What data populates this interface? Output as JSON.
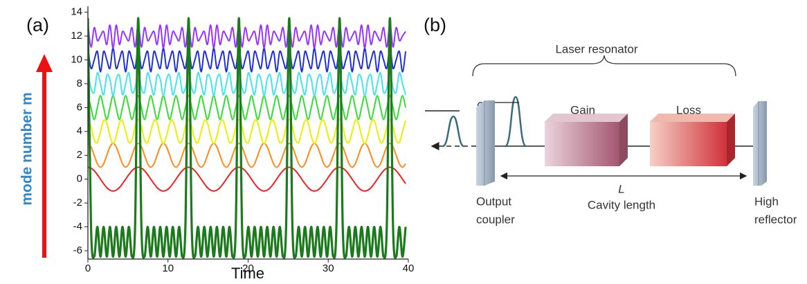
{
  "panel_labels": [
    "(a)",
    "(b)"
  ],
  "chart_data": {
    "type": "line",
    "xlabel": "Time",
    "ylabel": "mode number m",
    "xlim": [
      0,
      40
    ],
    "xticks": [
      0,
      10,
      20,
      30,
      40
    ],
    "ylim": [
      -6.7,
      14.5
    ],
    "yticks": [
      -6,
      -4,
      -2,
      0,
      2,
      4,
      6,
      8,
      10,
      12,
      14
    ],
    "x": [
      0,
      0.39,
      0.79,
      1.18,
      1.57,
      1.96,
      2.36,
      2.75,
      3.14,
      3.53,
      3.93,
      4.32,
      4.71,
      5.11,
      5.5,
      5.89,
      6.28,
      6.68,
      7.07,
      7.46,
      7.85,
      8.25,
      8.64,
      9.03,
      9.42,
      9.82,
      10.21,
      10.6,
      11,
      11.39,
      11.78,
      12.17,
      12.57,
      12.96,
      13.35,
      13.74,
      14.14,
      14.53,
      14.92,
      15.32,
      15.71,
      16.1,
      16.49,
      16.89,
      17.28,
      17.67,
      18.06,
      18.46,
      18.85,
      19.24,
      19.63,
      20.03,
      20.42,
      20.81,
      21.21,
      21.6,
      21.99,
      22.38,
      22.78,
      23.17,
      23.56,
      23.95,
      24.35,
      24.74,
      25.13,
      25.53,
      25.92,
      26.31,
      26.7,
      27.1,
      27.49,
      27.88,
      28.27,
      28.67,
      29.06,
      29.45,
      29.85,
      30.24,
      30.63,
      31.02,
      31.42,
      31.81,
      32.2,
      32.59,
      32.99,
      33.38,
      33.77,
      34.16,
      34.56,
      34.95,
      35.34,
      35.74,
      36.13,
      36.52,
      36.91,
      37.31,
      37.7,
      38.09,
      38.48,
      38.88,
      39.27,
      39.66
    ],
    "series": [
      {
        "color": "#ee2222",
        "values": [
          1,
          0.92,
          0.71,
          0.38,
          0,
          -0.38,
          -0.71,
          -0.92,
          -1,
          -0.92,
          -0.71,
          -0.38,
          0,
          0.38,
          0.71,
          0.92,
          1,
          0.92,
          0.71,
          0.38,
          0,
          -0.38,
          -0.71,
          -0.92,
          -1,
          -0.92,
          -0.71,
          -0.38,
          0,
          0.38,
          0.71,
          0.92,
          1,
          0.92,
          0.71,
          0.38,
          0,
          -0.38,
          -0.71,
          -0.92,
          -1,
          -0.92,
          -0.71,
          -0.38,
          0,
          0.38,
          0.71,
          0.92,
          1,
          0.92,
          0.71,
          0.38,
          0,
          -0.38,
          -0.71,
          -0.92,
          -1,
          -0.92,
          -0.71,
          -0.38,
          0,
          0.38,
          0.71,
          0.92,
          1,
          0.92,
          0.71,
          0.38,
          0,
          -0.38,
          -0.71,
          -0.92,
          -1,
          -0.92,
          -0.71,
          -0.38,
          0,
          0.38,
          0.71,
          0.92,
          1,
          0.92,
          0.71,
          0.38,
          0,
          -0.38,
          -0.71,
          -0.92,
          -1,
          -0.92,
          -0.71,
          -0.38,
          0,
          0.38,
          0.71,
          0.92,
          1,
          0.92,
          0.71,
          0.38,
          0,
          -0.38
        ]
      },
      {
        "color": "#ff8a1a",
        "values": [
          3,
          2.71,
          2,
          1.29,
          1,
          1.29,
          2,
          2.71,
          3,
          2.71,
          2,
          1.29,
          1,
          1.29,
          2,
          2.71,
          3,
          2.71,
          2,
          1.29,
          1,
          1.29,
          2,
          2.71,
          3,
          2.71,
          2,
          1.29,
          1,
          1.29,
          2,
          2.71,
          3,
          2.71,
          2,
          1.29,
          1,
          1.29,
          2,
          2.71,
          3,
          2.71,
          2,
          1.29,
          1,
          1.29,
          2,
          2.71,
          3,
          2.71,
          2,
          1.29,
          1,
          1.29,
          2,
          2.71,
          3,
          2.71,
          2,
          1.29,
          1,
          1.29,
          2,
          2.71,
          3,
          2.71,
          2,
          1.29,
          1,
          1.29,
          2,
          2.71,
          3,
          2.71,
          2,
          1.29,
          1,
          1.29,
          2,
          2.71,
          3,
          2.71,
          2,
          1.29,
          1,
          1.29,
          2,
          2.71,
          3,
          2.71,
          2,
          1.29,
          1,
          1.29,
          2,
          2.71,
          3,
          2.71,
          2,
          1.29,
          1,
          1.29
        ]
      },
      {
        "color": "#eeee00",
        "values": [
          5,
          4.38,
          3.29,
          3.08,
          4,
          4.92,
          4.71,
          3.62,
          3,
          3.62,
          4.71,
          4.92,
          4,
          3.08,
          3.29,
          4.38,
          5,
          4.38,
          3.29,
          3.08,
          4,
          4.92,
          4.71,
          3.62,
          3,
          3.62,
          4.71,
          4.92,
          4,
          3.08,
          3.29,
          4.38,
          5,
          4.38,
          3.29,
          3.08,
          4,
          4.92,
          4.71,
          3.62,
          3,
          3.62,
          4.71,
          4.92,
          4,
          3.08,
          3.29,
          4.38,
          5,
          4.38,
          3.29,
          3.08,
          4,
          4.92,
          4.71,
          3.62,
          3,
          3.62,
          4.71,
          4.92,
          4,
          3.08,
          3.29,
          4.38,
          5,
          4.38,
          3.29,
          3.08,
          4,
          4.92,
          4.71,
          3.62,
          3,
          3.62,
          4.71,
          4.92,
          4,
          3.08,
          3.29,
          4.38,
          5,
          4.38,
          3.29,
          3.08,
          4,
          4.92,
          4.71,
          3.62,
          3,
          3.62,
          4.71,
          4.92,
          4,
          3.08,
          3.29,
          4.38,
          5,
          4.38,
          3.29,
          3.08,
          4,
          4.92
        ]
      },
      {
        "color": "#33dd33",
        "values": [
          7,
          6,
          5,
          6,
          7,
          6,
          5,
          6,
          7,
          6,
          5,
          6,
          7,
          6,
          5,
          6,
          7,
          6,
          5,
          6,
          7,
          6,
          5,
          6,
          7,
          6,
          5,
          6,
          7,
          6,
          5,
          6,
          7,
          6,
          5,
          6,
          7,
          6,
          5,
          6,
          7,
          6,
          5,
          6,
          7,
          6,
          5,
          6,
          7,
          6,
          5,
          6,
          7,
          6,
          5,
          6,
          7,
          6,
          5,
          6,
          7,
          6,
          5,
          6,
          7,
          6,
          5,
          6,
          7,
          6,
          5,
          6,
          7,
          6,
          5,
          6,
          7,
          6,
          5,
          6,
          7,
          6,
          5,
          6,
          7,
          6,
          5,
          6,
          7,
          6,
          5,
          6,
          7,
          6,
          5,
          6,
          7,
          6,
          5,
          6,
          7,
          6
        ]
      },
      {
        "color": "#44e4ee",
        "values": [
          9,
          7.62,
          7.29,
          8.92,
          8,
          7.08,
          8.71,
          8.38,
          7,
          8.38,
          8.71,
          7.08,
          8,
          8.92,
          7.29,
          7.62,
          9,
          7.62,
          7.29,
          8.92,
          8,
          7.08,
          8.71,
          8.38,
          7,
          8.38,
          8.71,
          7.08,
          8,
          8.92,
          7.29,
          7.62,
          9,
          7.62,
          7.29,
          8.92,
          8,
          7.08,
          8.71,
          8.38,
          7,
          8.38,
          8.71,
          7.08,
          8,
          8.92,
          7.29,
          7.62,
          9,
          7.62,
          7.29,
          8.92,
          8,
          7.08,
          8.71,
          8.38,
          7,
          8.38,
          8.71,
          7.08,
          8,
          8.92,
          7.29,
          7.62,
          9,
          7.62,
          7.29,
          8.92,
          8,
          7.08,
          8.71,
          8.38,
          7,
          8.38,
          8.71,
          7.08,
          8,
          8.92,
          7.29,
          7.62,
          9,
          7.62,
          7.29,
          8.92,
          8,
          7.08,
          8.71,
          8.38,
          7,
          8.38,
          8.71,
          7.08,
          8,
          8.92,
          7.29,
          7.62,
          9,
          7.62,
          7.29,
          8.92,
          8,
          7.08
        ]
      },
      {
        "color": "#1f2fd6",
        "values": [
          11,
          9.29,
          10,
          10.71,
          9,
          10.71,
          10,
          9.29,
          11,
          9.29,
          10,
          10.71,
          9,
          10.71,
          10,
          9.29,
          11,
          9.29,
          10,
          10.71,
          9,
          10.71,
          10,
          9.29,
          11,
          9.29,
          10,
          10.71,
          9,
          10.71,
          10,
          9.29,
          11,
          9.29,
          10,
          10.71,
          9,
          10.71,
          10,
          9.29,
          11,
          9.29,
          10,
          10.71,
          9,
          10.71,
          10,
          9.29,
          11,
          9.29,
          10,
          10.71,
          9,
          10.71,
          10,
          9.29,
          11,
          9.29,
          10,
          10.71,
          9,
          10.71,
          10,
          9.29,
          11,
          9.29,
          10,
          10.71,
          9,
          10.71,
          10,
          9.29,
          11,
          9.29,
          10,
          10.71,
          9,
          10.71,
          10,
          9.29,
          11,
          9.29,
          10,
          10.71,
          9,
          10.71,
          10,
          9.29,
          11,
          9.29,
          10,
          10.71,
          9,
          10.71,
          10,
          9.29,
          11,
          9.29,
          10,
          10.71,
          9,
          10.71
        ]
      },
      {
        "color": "#9933ff",
        "values": [
          13,
          11.08,
          12.71,
          11.62,
          12,
          12.38,
          11.29,
          12.92,
          11,
          12.92,
          11.29,
          12.38,
          12,
          11.62,
          12.71,
          11.08,
          13,
          11.08,
          12.71,
          11.62,
          12,
          12.38,
          11.29,
          12.92,
          11,
          12.92,
          11.29,
          12.38,
          12,
          11.62,
          12.71,
          11.08,
          13,
          11.08,
          12.71,
          11.62,
          12,
          12.38,
          11.29,
          12.92,
          11,
          12.92,
          11.29,
          12.38,
          12,
          11.62,
          12.71,
          11.08,
          13,
          11.08,
          12.71,
          11.62,
          12,
          12.38,
          11.29,
          12.92,
          11,
          12.92,
          11.29,
          12.38,
          12,
          11.62,
          12.71,
          11.08,
          13,
          11.08,
          12.71,
          11.62,
          12,
          12.38,
          11.29,
          12.92,
          11,
          12.92,
          11.29,
          12.38,
          12,
          11.62,
          12.71,
          11.08,
          13,
          11.08,
          12.71,
          11.62,
          12,
          12.38,
          11.29,
          12.92,
          11,
          12.92,
          11.29,
          12.38,
          12,
          11.62,
          12.71,
          11.08,
          13,
          11.08,
          12.71,
          11.62,
          12,
          12.38
        ]
      },
      {
        "color": "#1b7a1b",
        "values": [
          13.5,
          -4,
          -6.5,
          -4,
          -6.5,
          -4,
          -6.5,
          -4,
          -6.5,
          -4,
          -6.5,
          -4,
          -6.5,
          -4,
          -6.5,
          -4,
          13.5,
          -4,
          -6.5,
          -4,
          -6.5,
          -4,
          -6.5,
          -4,
          -6.5,
          -4,
          -6.5,
          -4,
          -6.5,
          -4,
          -6.5,
          -4,
          13.5,
          -4,
          -6.5,
          -4,
          -6.5,
          -4,
          -6.5,
          -4,
          -6.5,
          -4,
          -6.5,
          -4,
          -6.5,
          -4,
          -6.5,
          -4,
          13.5,
          -4,
          -6.5,
          -4,
          -6.5,
          -4,
          -6.5,
          -4,
          -6.5,
          -4,
          -6.5,
          -4,
          -6.5,
          -4,
          -6.5,
          -4,
          13.5,
          -4,
          -6.5,
          -4,
          -6.5,
          -4,
          -6.5,
          -4,
          -6.5,
          -4,
          -6.5,
          -4,
          -6.5,
          -4,
          -6.5,
          -4,
          13.5,
          -4,
          -6.5,
          -4,
          -6.5,
          -4,
          -6.5,
          -4,
          -6.5,
          -4,
          -6.5,
          -4,
          -6.5,
          -4,
          -6.5,
          -4,
          13.5,
          -4,
          -6.5,
          -4,
          -6.5,
          -4
        ]
      }
    ]
  },
  "diagram": {
    "title": "Laser resonator",
    "gain": "Gain",
    "loss": "Loss",
    "length_symbol": "L",
    "length_label": "Cavity length",
    "left_mirror": [
      "Output",
      "coupler"
    ],
    "right_mirror": [
      "High",
      "reflector"
    ]
  }
}
